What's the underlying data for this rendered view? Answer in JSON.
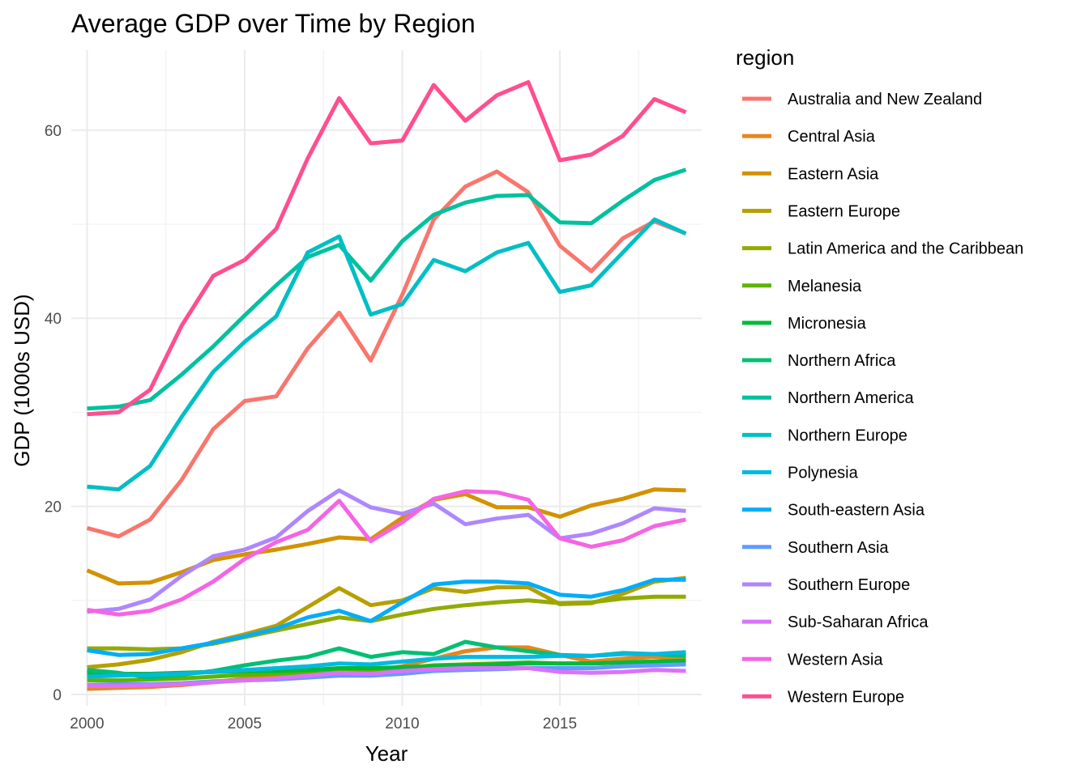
{
  "chart_data": {
    "type": "line",
    "title": "Average GDP over Time by Region",
    "xlabel": "Year",
    "ylabel": "GDP (1000s USD)",
    "legend_title": "region",
    "legend_position": "right",
    "grid": true,
    "xlim": [
      1999.5,
      2019.5
    ],
    "ylim": [
      -1.2,
      68.5
    ],
    "x_ticks": [
      2000,
      2005,
      2010,
      2015
    ],
    "y_ticks": [
      0,
      20,
      40,
      60
    ],
    "x": [
      2000,
      2001,
      2002,
      2003,
      2004,
      2005,
      2006,
      2007,
      2008,
      2009,
      2010,
      2011,
      2012,
      2013,
      2014,
      2015,
      2016,
      2017,
      2018,
      2019
    ],
    "series": [
      {
        "name": "Australia and New Zealand",
        "color": "#F8766D",
        "values": [
          17.7,
          16.8,
          18.6,
          22.8,
          28.2,
          31.2,
          31.7,
          36.8,
          40.6,
          35.5,
          42.5,
          50.5,
          54.0,
          55.6,
          53.4,
          47.7,
          45.0,
          48.5,
          50.3,
          49.0
        ]
      },
      {
        "name": "Central Asia",
        "color": "#E7861B",
        "values": [
          0.6,
          0.7,
          0.8,
          1.0,
          1.3,
          1.7,
          2.0,
          2.4,
          2.8,
          2.5,
          3.0,
          3.8,
          4.6,
          5.0,
          5.0,
          4.2,
          3.5,
          3.8,
          4.0,
          3.8
        ]
      },
      {
        "name": "Eastern Asia",
        "color": "#D39200",
        "values": [
          13.2,
          11.8,
          11.9,
          13.0,
          14.3,
          14.9,
          15.4,
          16.0,
          16.7,
          16.5,
          18.8,
          20.7,
          21.3,
          19.9,
          19.9,
          18.9,
          20.1,
          20.8,
          21.8,
          21.7
        ]
      },
      {
        "name": "Eastern Europe",
        "color": "#B79F00",
        "values": [
          2.9,
          3.2,
          3.7,
          4.5,
          5.6,
          6.4,
          7.3,
          9.3,
          11.3,
          9.5,
          10.0,
          11.3,
          10.9,
          11.4,
          11.4,
          9.6,
          9.7,
          10.7,
          12.0,
          12.4
        ]
      },
      {
        "name": "Latin America and the Caribbean",
        "color": "#93AA00",
        "values": [
          4.9,
          4.9,
          4.8,
          4.9,
          5.4,
          6.1,
          6.8,
          7.5,
          8.2,
          7.8,
          8.5,
          9.1,
          9.5,
          9.8,
          10.0,
          9.7,
          9.8,
          10.2,
          10.4,
          10.4
        ]
      },
      {
        "name": "Melanesia",
        "color": "#5EB300",
        "values": [
          1.5,
          1.5,
          1.6,
          1.7,
          1.9,
          2.1,
          2.2,
          2.4,
          2.7,
          2.6,
          2.8,
          3.1,
          3.2,
          3.3,
          3.4,
          3.3,
          3.3,
          3.4,
          3.5,
          3.5
        ]
      },
      {
        "name": "Micronesia",
        "color": "#00BA38",
        "values": [
          2.2,
          2.2,
          2.2,
          2.3,
          2.4,
          2.5,
          2.5,
          2.6,
          2.8,
          2.8,
          2.9,
          3.0,
          3.1,
          3.2,
          3.3,
          3.3,
          3.3,
          3.4,
          3.5,
          3.6
        ]
      },
      {
        "name": "Northern Africa",
        "color": "#00BF74",
        "values": [
          2.6,
          2.3,
          1.8,
          2.1,
          2.5,
          3.1,
          3.6,
          4.0,
          4.9,
          4.0,
          4.5,
          4.3,
          5.6,
          5.0,
          4.6,
          4.2,
          4.1,
          4.4,
          4.3,
          4.1
        ]
      },
      {
        "name": "Northern America",
        "color": "#00C19F",
        "values": [
          30.4,
          30.6,
          31.3,
          34.0,
          37.0,
          40.3,
          43.5,
          46.5,
          47.8,
          44.0,
          48.2,
          51.0,
          52.3,
          53.0,
          53.1,
          50.2,
          50.1,
          52.5,
          54.7,
          55.8
        ]
      },
      {
        "name": "Northern Europe",
        "color": "#00BFC4",
        "values": [
          22.1,
          21.8,
          24.3,
          29.5,
          34.3,
          37.5,
          40.2,
          47.0,
          48.7,
          40.4,
          41.5,
          46.2,
          45.0,
          47.0,
          48.0,
          42.8,
          43.5,
          47.0,
          50.5,
          49.0
        ]
      },
      {
        "name": "Polynesia",
        "color": "#00B9E3",
        "values": [
          1.9,
          2.0,
          2.1,
          2.2,
          2.4,
          2.6,
          2.8,
          3.0,
          3.3,
          3.2,
          3.5,
          3.8,
          4.0,
          4.0,
          4.0,
          4.1,
          4.1,
          4.3,
          4.3,
          4.5
        ]
      },
      {
        "name": "South-eastern Asia",
        "color": "#00ADFA",
        "values": [
          4.7,
          4.2,
          4.3,
          4.9,
          5.5,
          6.2,
          7.0,
          8.2,
          8.9,
          7.8,
          9.8,
          11.7,
          12.0,
          12.0,
          11.8,
          10.6,
          10.4,
          11.1,
          12.2,
          12.2
        ]
      },
      {
        "name": "Southern Asia",
        "color": "#619CFF",
        "values": [
          1.0,
          1.1,
          1.1,
          1.2,
          1.4,
          1.5,
          1.6,
          1.8,
          2.0,
          2.0,
          2.2,
          2.5,
          2.6,
          2.7,
          2.8,
          2.8,
          2.8,
          3.0,
          3.1,
          3.2
        ]
      },
      {
        "name": "Southern Europe",
        "color": "#AE87FF",
        "values": [
          8.8,
          9.1,
          10.1,
          12.6,
          14.7,
          15.4,
          16.7,
          19.5,
          21.7,
          19.9,
          19.2,
          20.3,
          18.1,
          18.7,
          19.1,
          16.6,
          17.1,
          18.2,
          19.8,
          19.5
        ]
      },
      {
        "name": "Sub-Saharan Africa",
        "color": "#DB72FB",
        "values": [
          0.9,
          0.9,
          1.0,
          1.1,
          1.3,
          1.5,
          1.7,
          2.0,
          2.3,
          2.2,
          2.5,
          2.7,
          2.8,
          2.8,
          2.8,
          2.4,
          2.3,
          2.4,
          2.6,
          2.5
        ]
      },
      {
        "name": "Western Asia",
        "color": "#F564E3",
        "values": [
          9.0,
          8.5,
          8.9,
          10.1,
          12.0,
          14.4,
          16.2,
          17.5,
          20.6,
          16.3,
          18.3,
          20.8,
          21.6,
          21.5,
          20.7,
          16.6,
          15.7,
          16.4,
          17.9,
          18.6
        ]
      },
      {
        "name": "Western Europe",
        "color": "#FF4E8F",
        "values": [
          29.8,
          30.0,
          32.4,
          39.2,
          44.5,
          46.2,
          49.5,
          57.0,
          63.4,
          58.6,
          58.9,
          64.8,
          61.0,
          63.7,
          65.1,
          56.8,
          57.4,
          59.4,
          63.3,
          61.9
        ]
      }
    ]
  }
}
